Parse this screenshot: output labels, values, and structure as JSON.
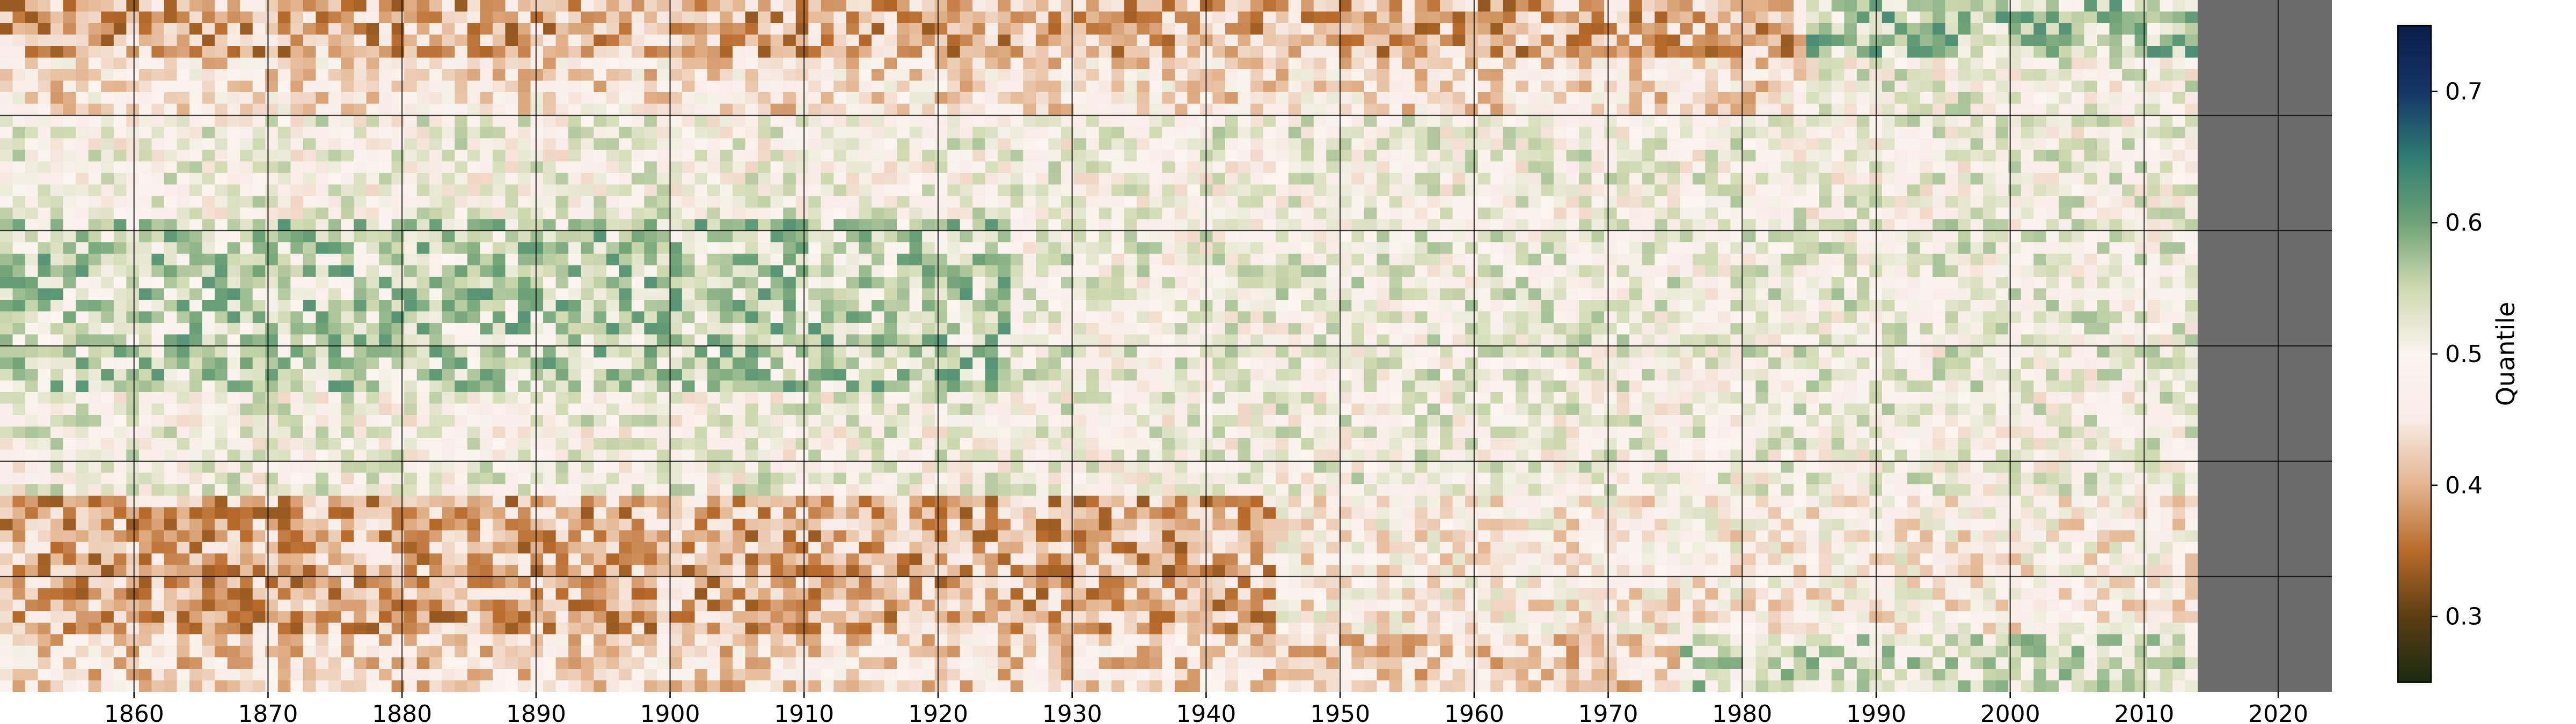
{
  "chart_data": {
    "type": "heatmap",
    "title": "",
    "xlabel": "",
    "ylabel": "",
    "x_range": [
      1850,
      2024
    ],
    "x_ticks": [
      1860,
      1870,
      1880,
      1890,
      1900,
      1910,
      1920,
      1930,
      1940,
      1950,
      1960,
      1970,
      1980,
      1990,
      2000,
      2010,
      2020
    ],
    "y_rows": 6,
    "grid": true,
    "data_end_year": 2014,
    "missing_after_data_end": true,
    "missing_color": "#6b6b6b",
    "colorbar": {
      "label": "Quantile",
      "range": [
        0.25,
        0.75
      ],
      "ticks": [
        0.3,
        0.4,
        0.5,
        0.6,
        0.7
      ],
      "tick_labels": [
        "0.3",
        "0.4",
        "0.5",
        "0.6",
        "0.7"
      ],
      "placement": "right",
      "colormap": [
        "#1a2b10",
        "#5c3e12",
        "#b86a2a",
        "#e3b48e",
        "#f8ece6",
        "#fbf4ef",
        "#cfd9b0",
        "#6fa377",
        "#2f7c73",
        "#143567",
        "#0b1d4a"
      ]
    },
    "row_bands": [
      {
        "row": "top",
        "character": "predominantly low quantiles (brown) across 1850–1990, higher (teal) after 1990"
      },
      {
        "row": "upper-middle",
        "character": "mixed, near 0.5"
      },
      {
        "row": "middle",
        "character": "green (above 0.5) patches 1850–1920"
      },
      {
        "row": "lower-middle",
        "character": "mixed, near 0.5"
      },
      {
        "row": "lower",
        "character": "strong brown band (~0.35–0.4) 1850–1940"
      },
      {
        "row": "bottom",
        "character": "brown early, teal spots after 1980"
      }
    ]
  }
}
